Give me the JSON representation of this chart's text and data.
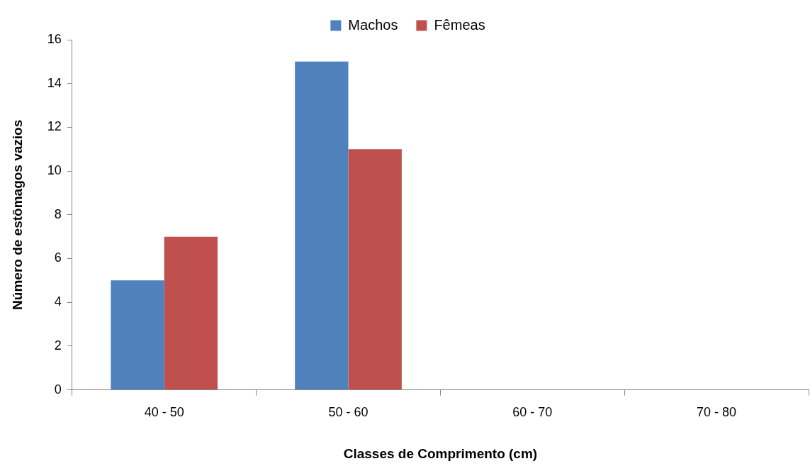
{
  "chart_data": {
    "type": "bar",
    "xlabel": "Classes de Comprimento (cm)",
    "ylabel": "Número de estômagos vazios",
    "categories": [
      "40 - 50",
      "50 - 60",
      "60 - 70",
      "70 - 80"
    ],
    "series": [
      {
        "name": "Machos",
        "color": "#4f81bd",
        "values": [
          5,
          15,
          0,
          0
        ]
      },
      {
        "name": "Fêmeas",
        "color": "#c0504d",
        "values": [
          7,
          11,
          0,
          0
        ]
      }
    ],
    "ylim": [
      0,
      16
    ],
    "yticks": [
      0,
      2,
      4,
      6,
      8,
      10,
      12,
      14,
      16
    ],
    "grid": false,
    "legend": "top"
  }
}
